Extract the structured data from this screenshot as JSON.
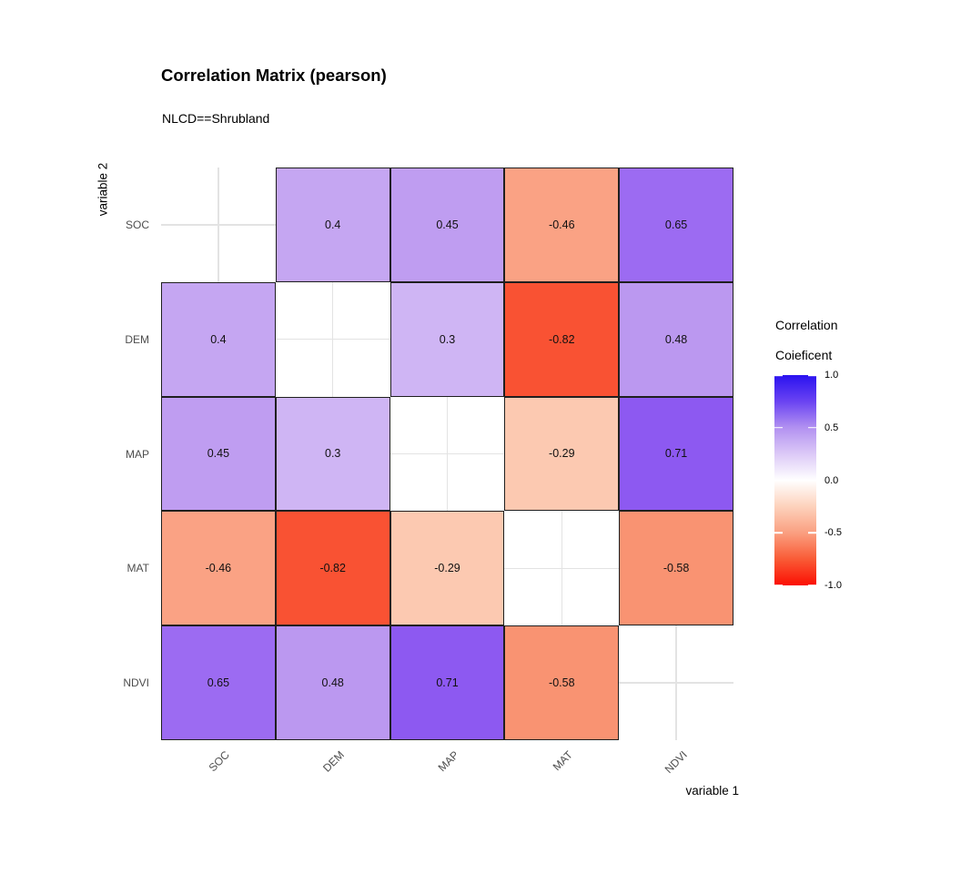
{
  "title": "Correlation Matrix (pearson)",
  "subtitle": "NLCD==Shrubland",
  "axes": {
    "x_title": "variable 1",
    "y_title": "variable 2"
  },
  "legend": {
    "title_lines": [
      "Correlation",
      "Coieficent"
    ],
    "tick_labels": [
      "1.0",
      "0.5",
      "0.0",
      "-0.5",
      "-1.0"
    ]
  },
  "style": {
    "grid_color": "#e3e3e3",
    "cell_border_color": "#1f1f1f",
    "axis_text_color": "#4d4d4d",
    "gradient_stops": [
      "#2a12f0",
      "#6a43f2",
      "#b291f1",
      "#dcc9f7",
      "#ffffff",
      "#fdd2bc",
      "#fa9f80",
      "#f95b36",
      "#fb0f03"
    ]
  },
  "chart_data": {
    "type": "heatmap",
    "title": "Correlation Matrix (pearson)",
    "subtitle": "NLCD==Shrubland",
    "xlabel": "variable 1",
    "ylabel": "variable 2",
    "variables": [
      "SOC",
      "DEM",
      "MAP",
      "MAT",
      "NDVI"
    ],
    "matrix": [
      [
        null,
        0.4,
        0.45,
        -0.46,
        0.65
      ],
      [
        0.4,
        null,
        0.3,
        -0.82,
        0.48
      ],
      [
        0.45,
        0.3,
        null,
        -0.29,
        0.71
      ],
      [
        -0.46,
        -0.82,
        -0.29,
        null,
        -0.58
      ],
      [
        0.65,
        0.48,
        0.71,
        -0.58,
        null
      ]
    ],
    "value_colors": {
      "0.3": "#cfb5f4",
      "0.4": "#c5a6f2",
      "0.45": "#bf9df1",
      "0.48": "#bb98f0",
      "0.65": "#9c6bf2",
      "0.71": "#8d59f1",
      "-0.29": "#fcc9b1",
      "-0.46": "#faa284",
      "-0.58": "#f99372",
      "-0.82": "#f95233"
    },
    "colorbar": {
      "title": "Correlation Coieficent",
      "min": -1.0,
      "max": 1.0,
      "ticks": [
        1.0,
        0.5,
        0.0,
        -0.5,
        -1.0
      ]
    },
    "legend_position": "right",
    "grid": true,
    "diagonal_cells": "blank"
  }
}
